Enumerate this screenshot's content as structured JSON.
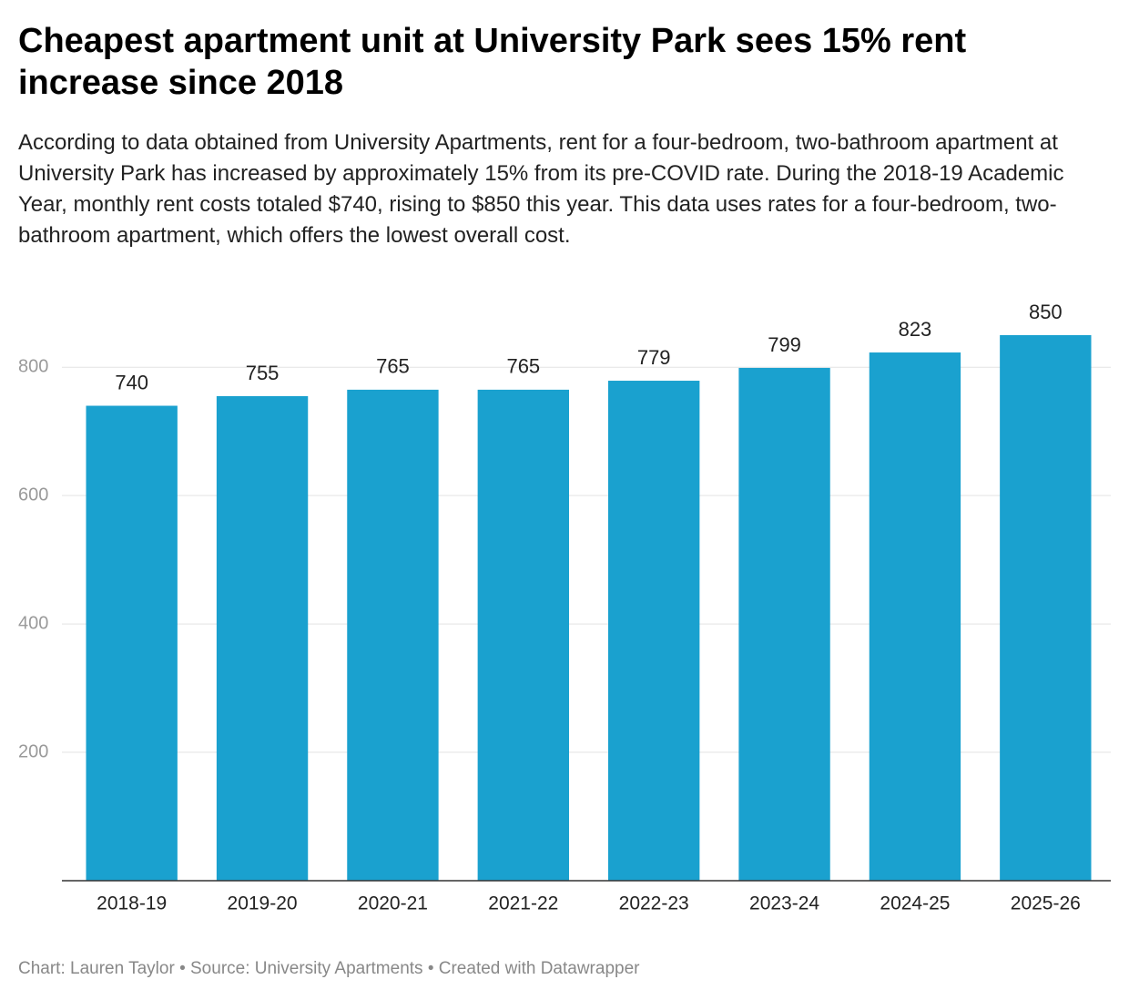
{
  "chart_data": {
    "type": "bar",
    "title": "Cheapest apartment unit at University Park sees 15% rent increase since 2018",
    "subtitle": "According to data obtained from University Apartments, rent for a four-bedroom, two-bathroom apartment at University Park has increased by approximately 15% from its pre-COVID rate. During the 2018-19 Academic Year, monthly rent costs totaled $740, rising to $850 this year. This data uses rates for a four-bedroom, two-bathroom apartment, which offers the lowest overall cost.",
    "categories": [
      "2018-19",
      "2019-20",
      "2020-21",
      "2021-22",
      "2022-23",
      "2023-24",
      "2024-25",
      "2025-26"
    ],
    "values": [
      740,
      755,
      765,
      765,
      779,
      799,
      823,
      850
    ],
    "color": "#1aa1cf",
    "ylim": [
      0,
      850
    ],
    "yticks": [
      200,
      400,
      600,
      800
    ],
    "grid": true,
    "footer": "Chart: Lauren Taylor • Source: University Apartments • Created with Datawrapper"
  }
}
